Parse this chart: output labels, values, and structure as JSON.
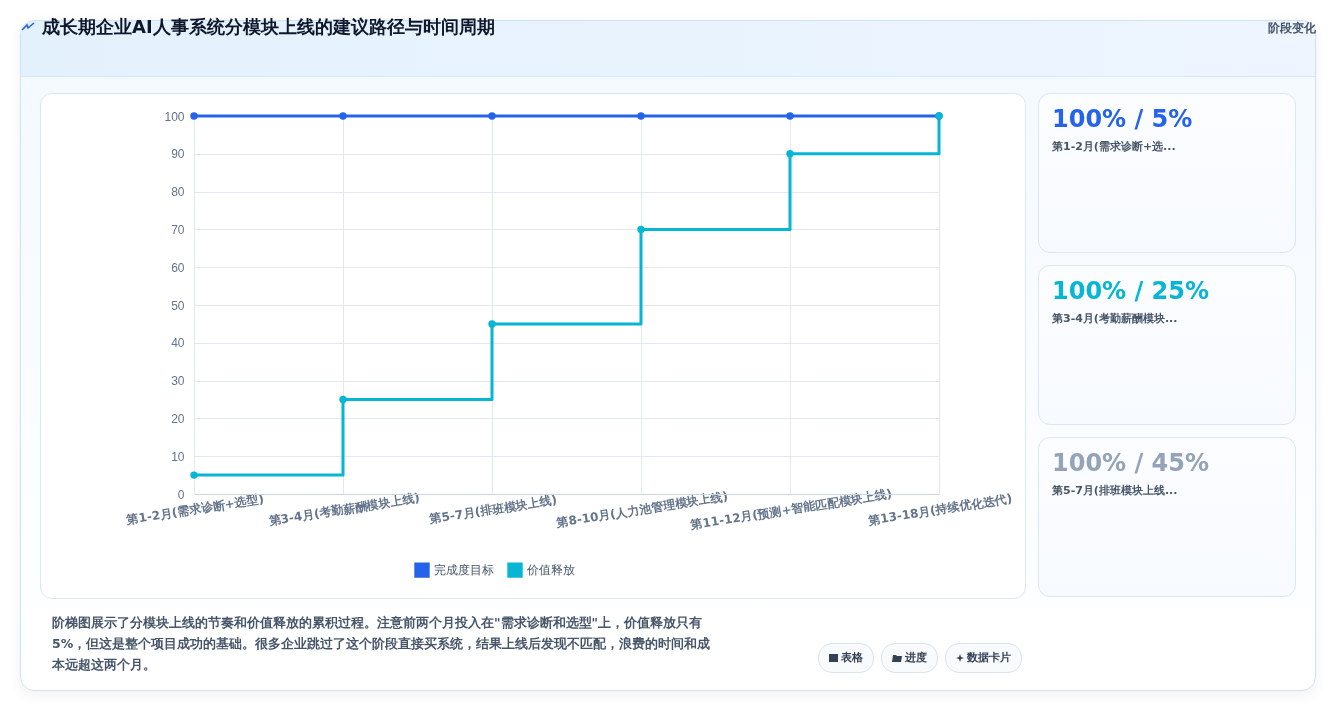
{
  "chart_data": [
    {
      "type": "step",
      "title": "成长期企业AI人事系统分模块上线的建议路径与时间周期",
      "categories": [
        "第1-2月(需求诊断+选型)",
        "第3-4月(考勤薪酬模块上线)",
        "第5-7月(排班模块上线)",
        "第8-10月(人力池管理模块上线)",
        "第11-12月(预测+智能匹配模块上线)",
        "第13-18月(持续优化迭代)"
      ],
      "series": [
        {
          "name": "完成度目标",
          "color": "#2563eb",
          "values": [
            100,
            100,
            100,
            100,
            100,
            100
          ]
        },
        {
          "name": "价值释放",
          "color": "#06b6d4",
          "values": [
            5,
            25,
            45,
            70,
            90,
            100
          ]
        }
      ],
      "ylim": [
        0,
        100
      ],
      "yticks": [
        0,
        10,
        20,
        30,
        40,
        50,
        60,
        70,
        80,
        90,
        100
      ],
      "grid": true,
      "legend": "bottom",
      "marker": "circle",
      "annotations": [
        "阶段变化",
        "阶梯图展示了分模块上线的节奏和价值释放的累积过程。注意前两个月投入在\"需求诊断和选型\"上，价值释放只有5%，但这是整个项目成功的基础。很多企业跳过了这个阶段直接买系统，结果上线后发现不匹配，浪费的时间和成本远超这两个月。",
        "表格",
        "进度",
        "数据卡片"
      ]
    },
    {
      "type": "other",
      "annotations": [
        "100% / 5%",
        "第1-2月(需求诊断+选...",
        "100% / 25%",
        "第3-4月(考勤薪酬模块...",
        "100% / 45%",
        "第5-7月(排班模块上线..."
      ]
    }
  ]
}
